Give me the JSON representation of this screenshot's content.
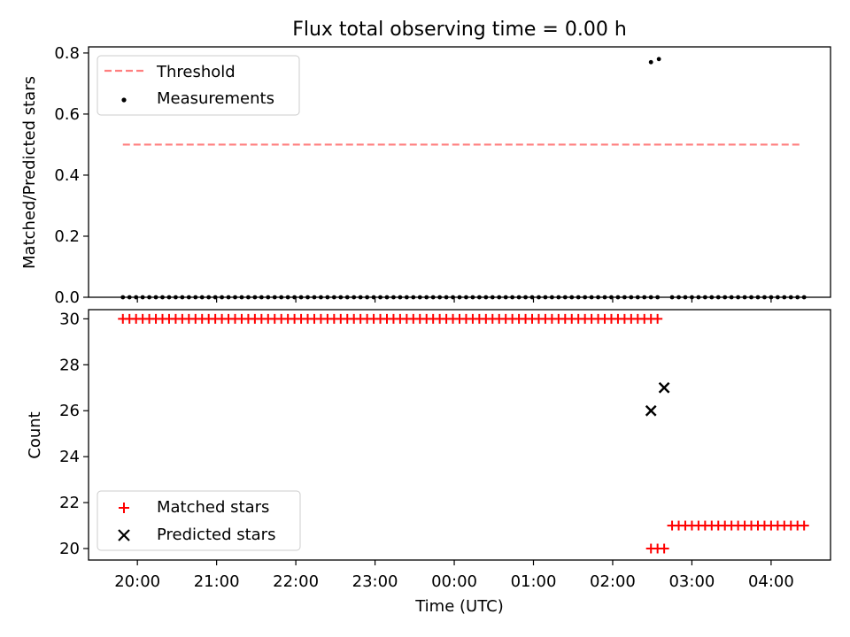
{
  "chart_data": {
    "type": "scatter",
    "title": "Flux total observing time = 0.00 h",
    "xlabel": "Time (UTC)",
    "x_ticks": [
      "20:00",
      "21:00",
      "22:00",
      "23:00",
      "00:00",
      "01:00",
      "02:00",
      "03:00",
      "04:00"
    ],
    "x_tick_minutes_after_2000": [
      0,
      60,
      120,
      180,
      240,
      300,
      360,
      420,
      480
    ],
    "xlim_minutes_after_2000": [
      -37,
      525
    ],
    "top_panel": {
      "ylabel": "Matched/Predicted stars",
      "ylim": [
        0,
        0.82
      ],
      "y_ticks": [
        "0.0",
        "0.2",
        "0.4",
        "0.6",
        "0.8"
      ],
      "y_tick_values": [
        0,
        0.2,
        0.4,
        0.6,
        0.8
      ],
      "legend_position": "upper-left",
      "series": [
        {
          "name": "Threshold",
          "kind": "dashed-line",
          "color": "#ff7f7f",
          "y": 0.5,
          "x_range_minutes_after_2000": [
            -11,
            503
          ]
        },
        {
          "name": "Measurements",
          "kind": "points",
          "color": "#000000",
          "x_minutes_after_2000": [
            -11,
            -6,
            -1,
            4,
            9,
            14,
            19,
            24,
            29,
            34,
            39,
            44,
            49,
            54,
            59,
            64,
            69,
            74,
            79,
            84,
            89,
            94,
            99,
            104,
            109,
            114,
            119,
            124,
            129,
            134,
            139,
            144,
            149,
            154,
            159,
            164,
            169,
            174,
            179,
            184,
            189,
            194,
            199,
            204,
            209,
            214,
            219,
            224,
            229,
            234,
            239,
            244,
            249,
            254,
            259,
            264,
            269,
            274,
            279,
            284,
            289,
            294,
            299,
            304,
            309,
            314,
            319,
            324,
            329,
            334,
            339,
            344,
            349,
            354,
            359,
            364,
            369,
            374,
            379,
            384,
            389,
            394,
            389,
            395,
            405,
            410,
            415,
            420,
            425,
            430,
            435,
            440,
            445,
            450,
            455,
            460,
            465,
            470,
            475,
            480,
            485,
            490,
            495,
            500,
            505
          ],
          "y": [
            0,
            0,
            0,
            0,
            0,
            0,
            0,
            0,
            0,
            0,
            0,
            0,
            0,
            0,
            0,
            0,
            0,
            0,
            0,
            0,
            0,
            0,
            0,
            0,
            0,
            0,
            0,
            0,
            0,
            0,
            0,
            0,
            0,
            0,
            0,
            0,
            0,
            0,
            0,
            0,
            0,
            0,
            0,
            0,
            0,
            0,
            0,
            0,
            0,
            0,
            0,
            0,
            0,
            0,
            0,
            0,
            0,
            0,
            0,
            0,
            0,
            0,
            0,
            0,
            0,
            0,
            0,
            0,
            0,
            0,
            0,
            0,
            0,
            0,
            0,
            0,
            0,
            0,
            0,
            0,
            0,
            0,
            0.77,
            0.78,
            0,
            0,
            0,
            0,
            0,
            0,
            0,
            0,
            0,
            0,
            0,
            0,
            0,
            0,
            0,
            0,
            0,
            0,
            0,
            0,
            0
          ]
        }
      ]
    },
    "bottom_panel": {
      "ylabel": "Count",
      "ylim": [
        19.5,
        30.4
      ],
      "y_ticks": [
        "20",
        "22",
        "24",
        "26",
        "28",
        "30"
      ],
      "y_tick_values": [
        20,
        22,
        24,
        26,
        28,
        30
      ],
      "legend_position": "lower-left",
      "series": [
        {
          "name": "Matched stars",
          "kind": "plus-markers",
          "color": "#ff0000",
          "x_minutes_after_2000": [
            -11,
            -6,
            -1,
            4,
            9,
            14,
            19,
            24,
            29,
            34,
            39,
            44,
            49,
            54,
            59,
            64,
            69,
            74,
            79,
            84,
            89,
            94,
            99,
            104,
            109,
            114,
            119,
            124,
            129,
            134,
            139,
            144,
            149,
            154,
            159,
            164,
            169,
            174,
            179,
            184,
            189,
            194,
            199,
            204,
            209,
            214,
            219,
            224,
            229,
            234,
            239,
            244,
            249,
            254,
            259,
            264,
            269,
            274,
            279,
            284,
            289,
            294,
            299,
            304,
            309,
            314,
            319,
            324,
            329,
            334,
            339,
            344,
            349,
            354,
            359,
            364,
            369,
            374,
            379,
            384,
            389,
            394,
            389,
            394,
            399,
            405,
            410,
            415,
            420,
            425,
            430,
            435,
            440,
            445,
            450,
            455,
            460,
            465,
            470,
            475,
            480,
            485,
            490,
            495,
            500,
            505
          ],
          "y": [
            30,
            30,
            30,
            30,
            30,
            30,
            30,
            30,
            30,
            30,
            30,
            30,
            30,
            30,
            30,
            30,
            30,
            30,
            30,
            30,
            30,
            30,
            30,
            30,
            30,
            30,
            30,
            30,
            30,
            30,
            30,
            30,
            30,
            30,
            30,
            30,
            30,
            30,
            30,
            30,
            30,
            30,
            30,
            30,
            30,
            30,
            30,
            30,
            30,
            30,
            30,
            30,
            30,
            30,
            30,
            30,
            30,
            30,
            30,
            30,
            30,
            30,
            30,
            30,
            30,
            30,
            30,
            30,
            30,
            30,
            30,
            30,
            30,
            30,
            30,
            30,
            30,
            30,
            30,
            30,
            30,
            30,
            20,
            20,
            20,
            21,
            21,
            21,
            21,
            21,
            21,
            21,
            21,
            21,
            21,
            21,
            21,
            21,
            21,
            21,
            21,
            21,
            21,
            21,
            21,
            21
          ]
        },
        {
          "name": "Predicted stars",
          "kind": "x-markers",
          "color": "#000000",
          "x_minutes_after_2000": [
            389,
            399
          ],
          "y": [
            26,
            27
          ]
        }
      ]
    }
  }
}
